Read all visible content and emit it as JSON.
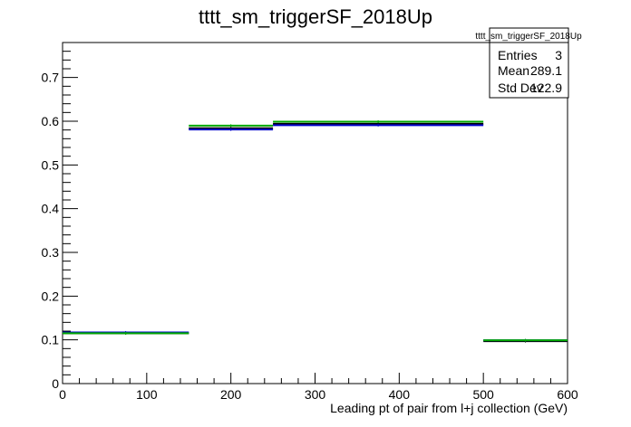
{
  "chart_data": {
    "type": "step",
    "title": "tttt_sm_triggerSF_2018Up",
    "xlabel": "Leading pt of pair from l+j collection (GeV)",
    "ylabel": "",
    "xlim": [
      0,
      600
    ],
    "ylim": [
      0,
      0.78
    ],
    "x_ticks": [
      0,
      100,
      200,
      300,
      400,
      500,
      600
    ],
    "y_ticks": [
      0,
      0.1,
      0.2,
      0.3,
      0.4,
      0.5,
      0.6,
      0.7
    ],
    "x_tick_labels": [
      "0",
      "100",
      "200",
      "300",
      "400",
      "500",
      "600"
    ],
    "y_tick_labels": [
      "0",
      "0.1",
      "0.2",
      "0.3",
      "0.4",
      "0.5",
      "0.6",
      "0.7"
    ],
    "bin_edges": [
      0,
      150,
      250,
      500,
      600
    ],
    "series": [
      {
        "color": "#000000",
        "values": [
          0.115,
          0.584,
          0.594,
          0.097
        ]
      },
      {
        "color": "#0000cc",
        "values": [
          0.117,
          0.581,
          0.591,
          0.099
        ]
      },
      {
        "color": "#00aa00",
        "values": [
          0.115,
          0.59,
          0.599,
          0.099
        ]
      }
    ],
    "grid": false,
    "legend": "none"
  },
  "stats_box": {
    "title": "tttt_sm_triggerSF_2018Up",
    "rows": [
      {
        "label": "Entries",
        "value": "3"
      },
      {
        "label": "Mean",
        "value": "289.1"
      },
      {
        "label": "Std Dev",
        "value": "122.9"
      }
    ]
  }
}
